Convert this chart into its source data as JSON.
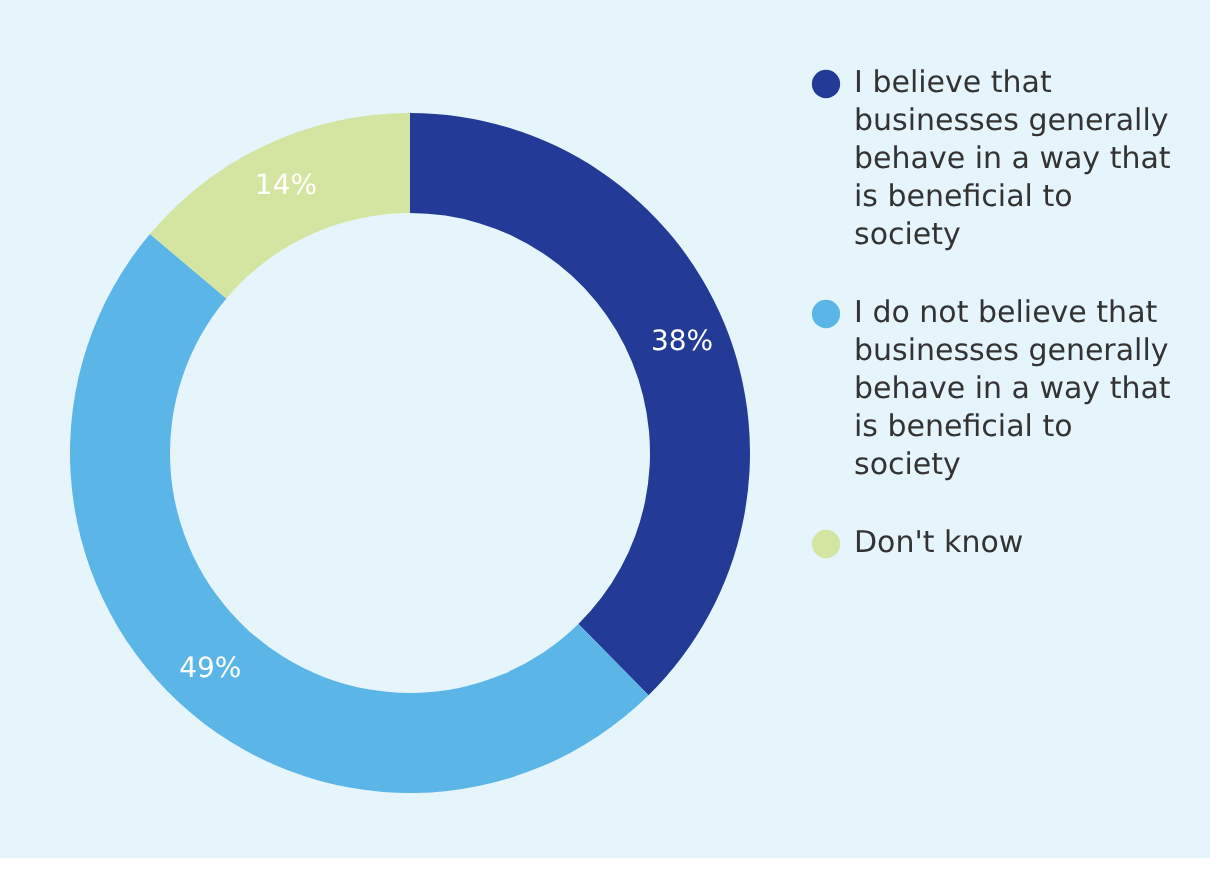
{
  "chart_data": {
    "type": "donut",
    "categories": [
      "I believe that businesses generally behave in a way that is beneficial to society",
      "I do not believe that businesses generally behave in a way that is beneficial to society",
      "Don't know"
    ],
    "values": [
      38,
      49,
      14
    ],
    "colors": [
      "#233a96",
      "#5bb5e6",
      "#d3e5a1"
    ],
    "value_labels": [
      "38%",
      "49%",
      "14%"
    ],
    "legend": "right"
  }
}
